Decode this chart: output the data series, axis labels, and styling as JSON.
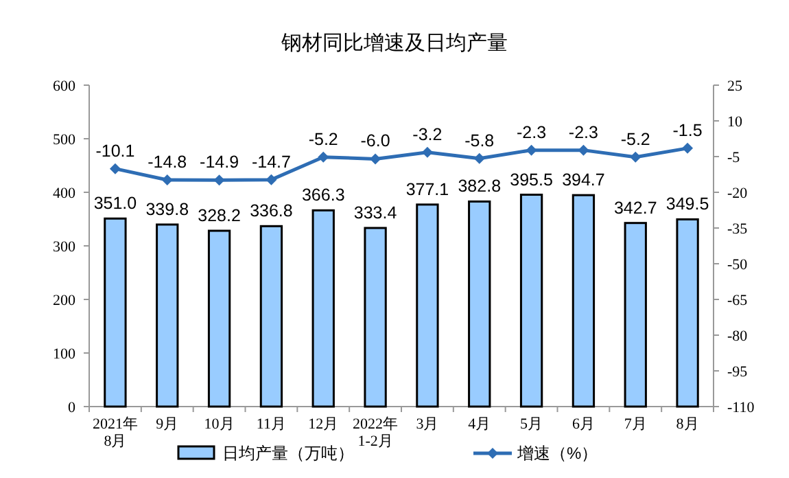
{
  "chart_data": {
    "type": "bar",
    "title": "钢材同比增速及日均产量",
    "categories": [
      "2021年\n8月",
      "9月",
      "10月",
      "11月",
      "12月",
      "2022年\n1-2月",
      "3月",
      "4月",
      "5月",
      "6月",
      "7月",
      "8月"
    ],
    "series": [
      {
        "name": "日均产量（万吨）",
        "color": "#99ccff",
        "values": [
          351.0,
          339.8,
          328.2,
          336.8,
          366.3,
          333.4,
          377.1,
          382.8,
          395.5,
          394.7,
          342.7,
          349.5
        ],
        "value_labels": [
          "351.0",
          "339.8",
          "328.2",
          "336.8",
          "366.3",
          "333.4",
          "377.1",
          "382.8",
          "395.5",
          "394.7",
          "342.7",
          "349.5"
        ]
      },
      {
        "name": "增速（%）",
        "type": "line",
        "axis": "y2",
        "color": "#2e6db4",
        "marker": "diamond",
        "values": [
          -10.1,
          -14.8,
          -14.9,
          -14.7,
          -5.2,
          -6.0,
          -3.2,
          -5.8,
          -2.3,
          -2.3,
          -5.2,
          -1.5
        ],
        "value_labels": [
          "-10.1",
          "-14.8",
          "-14.9",
          "-14.7",
          "-5.2",
          "-6.0",
          "-3.2",
          "-5.8",
          "-2.3",
          "-2.3",
          "-5.2",
          "-1.5"
        ]
      }
    ],
    "ylim": [
      0,
      600
    ],
    "yticks": [
      0,
      100,
      200,
      300,
      400,
      500,
      600
    ],
    "y2lim": [
      -110,
      25
    ],
    "y2ticks": [
      -110,
      -95,
      -80,
      -65,
      -50,
      -35,
      -20,
      -5,
      10,
      25
    ],
    "grid": false,
    "legend": "bottom"
  }
}
